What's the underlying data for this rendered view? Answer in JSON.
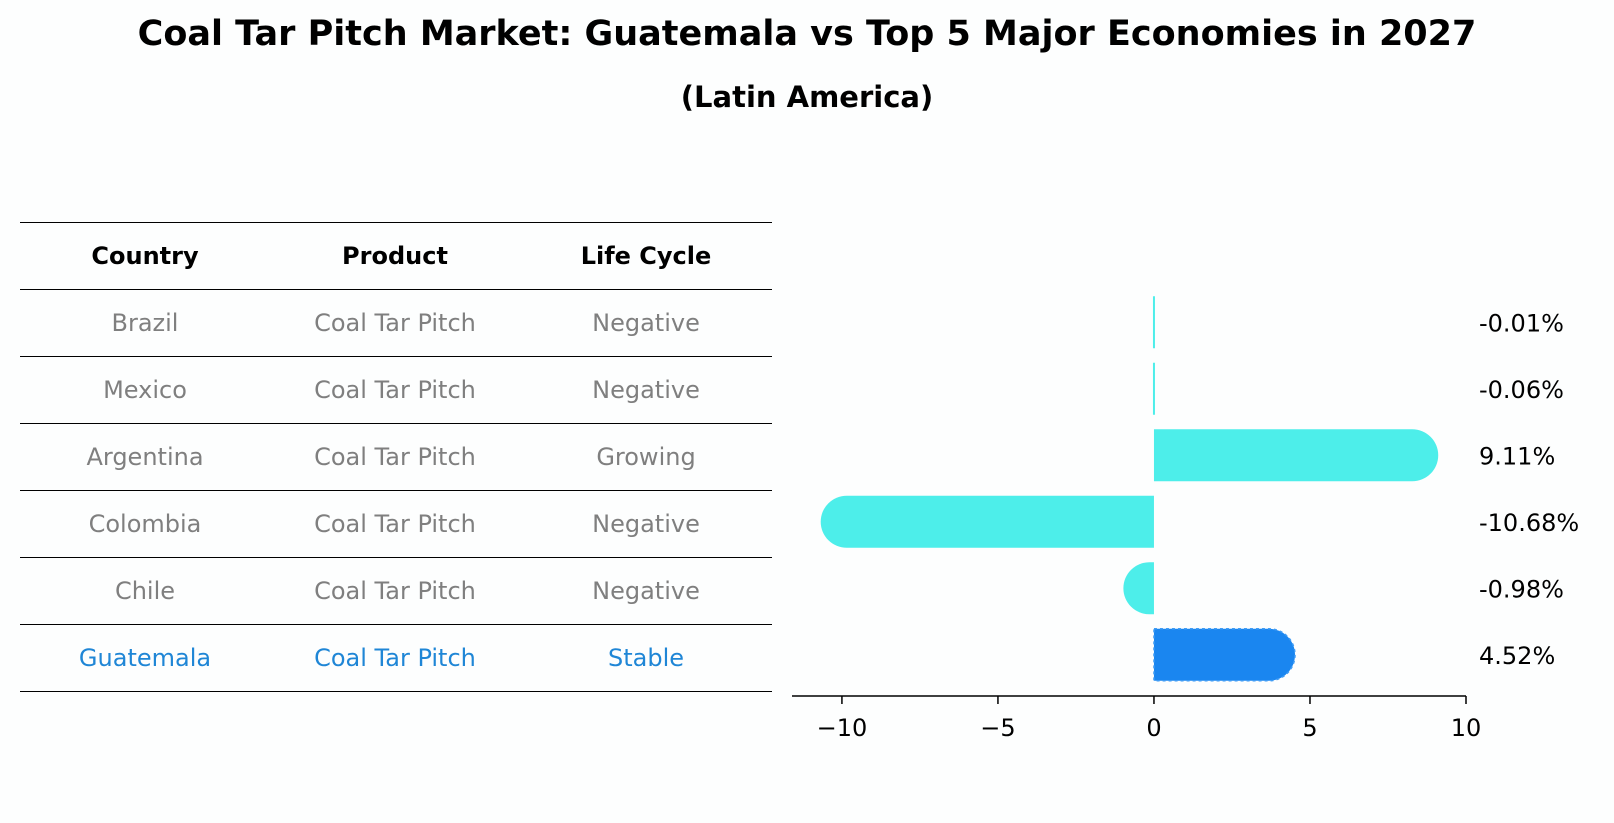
{
  "title": "Coal Tar Pitch Market: Guatemala vs Top 5 Major Economies in 2027",
  "subtitle": "(Latin America)",
  "table": {
    "headers": [
      "Country",
      "Product",
      "Life Cycle"
    ],
    "rows": [
      [
        "Brazil",
        "Coal Tar Pitch",
        "Negative"
      ],
      [
        "Mexico",
        "Coal Tar Pitch",
        "Negative"
      ],
      [
        "Argentina",
        "Coal Tar Pitch",
        "Growing"
      ],
      [
        "Colombia",
        "Coal Tar Pitch",
        "Negative"
      ],
      [
        "Chile",
        "Coal Tar Pitch",
        "Negative"
      ],
      [
        "Guatemala",
        "Coal Tar Pitch",
        "Stable"
      ]
    ]
  },
  "chart_data": {
    "type": "bar",
    "orientation": "horizontal",
    "categories": [
      "Brazil",
      "Mexico",
      "Argentina",
      "Colombia",
      "Chile",
      "Guatemala"
    ],
    "values": [
      -0.01,
      -0.06,
      9.11,
      -10.68,
      -0.98,
      4.52
    ],
    "value_labels": [
      "-0.01%",
      "-0.06%",
      "9.11%",
      "-10.68%",
      "-0.98%",
      "4.52%"
    ],
    "highlight": "Guatemala",
    "xlim": [
      -11.6,
      10
    ],
    "xticks": [
      -10,
      -5,
      0,
      5,
      10
    ],
    "xtick_labels": [
      "−10",
      "−5",
      "0",
      "5",
      "10"
    ],
    "colors": {
      "default": "#4deeea",
      "highlight": "#1a86f0"
    }
  }
}
